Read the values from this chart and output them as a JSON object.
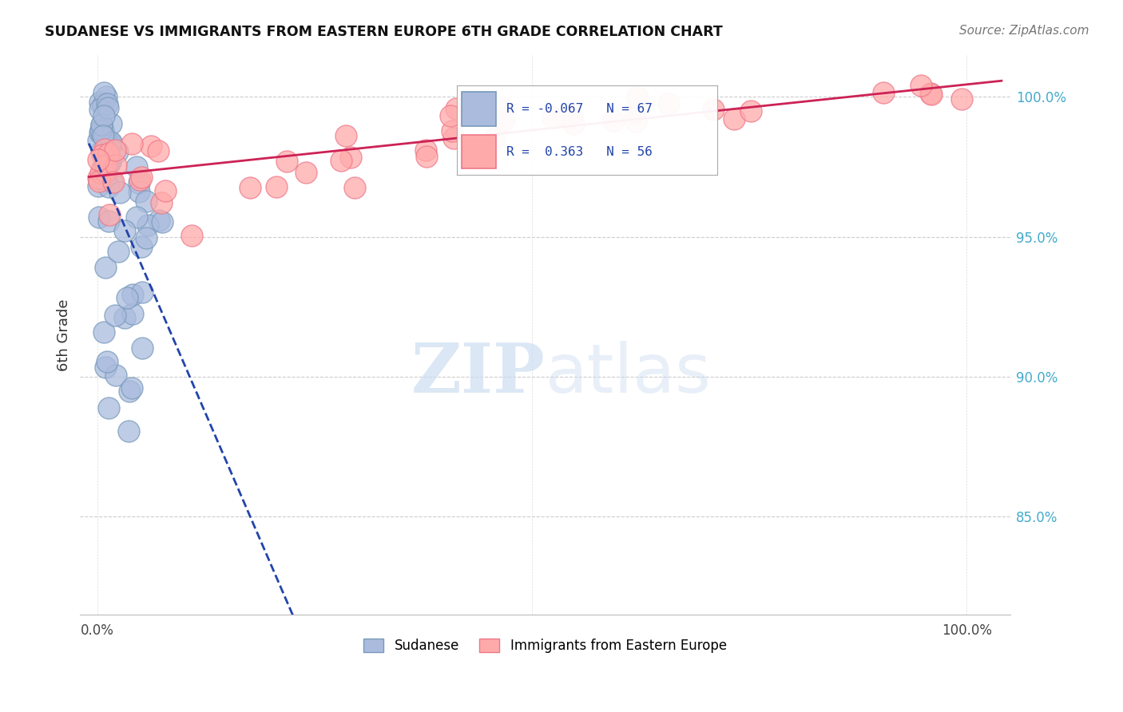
{
  "title": "SUDANESE VS IMMIGRANTS FROM EASTERN EUROPE 6TH GRADE CORRELATION CHART",
  "source": "Source: ZipAtlas.com",
  "ylabel": "6th Grade",
  "legend_blue_r": "-0.067",
  "legend_blue_n": "67",
  "legend_pink_r": "0.363",
  "legend_pink_n": "56",
  "blue_color": "#aabbdd",
  "blue_edge": "#7799bb",
  "pink_color": "#ffaaaa",
  "pink_edge": "#ee7788",
  "blue_trend_color": "#2244aa",
  "pink_trend_color": "#cc2255",
  "right_tick_color": "#44aacc",
  "yticks": [
    0.85,
    0.9,
    0.95,
    1.0
  ],
  "ytick_labels": [
    "85.0%",
    "90.0%",
    "95.0%",
    "100.0%"
  ],
  "xlim": [
    -0.02,
    1.05
  ],
  "ylim": [
    0.815,
    1.015
  ]
}
